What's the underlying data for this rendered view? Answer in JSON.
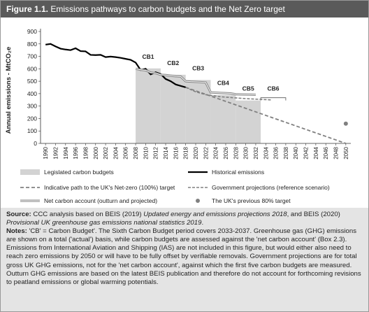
{
  "figure_label": "Figure 1.1.",
  "title": "Emissions pathways to carbon budgets and the Net Zero target",
  "chart_data": {
    "type": "line",
    "y_label": "Annual emissions - MtCO₂e",
    "xlim": [
      1989,
      2051
    ],
    "ylim": [
      0,
      900
    ],
    "yticks": [
      0,
      100,
      200,
      300,
      400,
      500,
      600,
      700,
      800,
      900
    ],
    "xticks": [
      1990,
      1992,
      1994,
      1996,
      1998,
      2000,
      2002,
      2004,
      2006,
      2008,
      2010,
      2012,
      2014,
      2016,
      2018,
      2020,
      2022,
      2024,
      2026,
      2028,
      2030,
      2032,
      2034,
      2036,
      2038,
      2040,
      2042,
      2044,
      2046,
      2048,
      2050
    ],
    "budgets": {
      "name": "Legislated carbon budgets",
      "color": "#d3d3d3",
      "items": [
        {
          "label": "CB1",
          "start": 2008,
          "end": 2012,
          "value": 603
        },
        {
          "label": "CB2",
          "start": 2013,
          "end": 2017,
          "value": 552
        },
        {
          "label": "CB3",
          "start": 2018,
          "end": 2022,
          "value": 510
        },
        {
          "label": "CB4",
          "start": 2023,
          "end": 2027,
          "value": 390
        },
        {
          "label": "CB5",
          "start": 2028,
          "end": 2032,
          "value": 345
        },
        {
          "label": "CB6",
          "start": 2033,
          "end": 2037
        }
      ]
    },
    "series": [
      {
        "name": "Historical emissions",
        "color": "#000000",
        "style": "solid",
        "x": [
          1990,
          1991,
          1992,
          1993,
          1994,
          1995,
          1996,
          1997,
          1998,
          1999,
          2000,
          2001,
          2002,
          2003,
          2004,
          2005,
          2006,
          2007,
          2008,
          2009,
          2010,
          2011,
          2012,
          2013,
          2014,
          2015,
          2016,
          2017,
          2018
        ],
        "values": [
          794,
          800,
          780,
          762,
          755,
          750,
          765,
          742,
          740,
          712,
          710,
          712,
          694,
          698,
          694,
          688,
          680,
          672,
          650,
          590,
          600,
          555,
          572,
          558,
          518,
          500,
          474,
          462,
          451
        ]
      },
      {
        "name": "Indicative path to the UK's Net-zero (100%) target",
        "color": "#808080",
        "style": "dash",
        "x": [
          2018,
          2050
        ],
        "values": [
          451,
          0
        ]
      },
      {
        "name": "Government projections (reference scenario)",
        "color": "#808080",
        "style": "dash2",
        "x": [
          2018,
          2020,
          2022,
          2025,
          2030,
          2035
        ],
        "values": [
          451,
          415,
          392,
          375,
          360,
          350
        ]
      },
      {
        "name": "Net carbon account (outturn and projected)",
        "color": "#808080",
        "style": "double",
        "x": [
          2008,
          2009,
          2010,
          2011,
          2012,
          2013,
          2014,
          2015,
          2016,
          2017,
          2018,
          2019,
          2020,
          2021,
          2022,
          2023,
          2024,
          2025,
          2026,
          2027,
          2028,
          2029,
          2030,
          2031,
          2032
        ],
        "values": [
          600,
          592,
          588,
          570,
          565,
          552,
          550,
          545,
          540,
          538,
          500,
          497,
          495,
          493,
          490,
          410,
          408,
          406,
          404,
          402,
          395,
          394,
          393,
          392,
          391
        ]
      }
    ],
    "points": [
      {
        "name": "The UK's previous 80% target",
        "color": "#808080",
        "x": 2050,
        "value": 159
      }
    ]
  },
  "source": {
    "label": "Source:",
    "text": [
      "CCC analysis based on BEIS (2019) ",
      "Updated energy and emissions projections 2018",
      ", and BEIS (2020) ",
      "Provisional UK greenhouse gas emissions national statistics 2019",
      "."
    ]
  },
  "notes": {
    "label": "Notes:",
    "text": "'CB' = Carbon Budget'. The Sixth Carbon Budget period covers 2033-2037. Greenhouse gas (GHG) emissions are shown on a total ('actual') basis, while carbon budgets are assessed against the 'net carbon account' (Box 2.3). Emissions from International Aviation and Shipping (IAS) are not included in this figure, but would either also need to reach zero emissions by 2050 or will have to be fully offset by verifiable removals. Government projections are for total gross UK GHG emissions, not for the 'net carbon account', against which the first five carbon budgets are measured. Outturn GHG emissions are based on the latest BEIS publication and therefore do not account for forthcoming revisions to peatland emissions or global warming potentials."
  }
}
